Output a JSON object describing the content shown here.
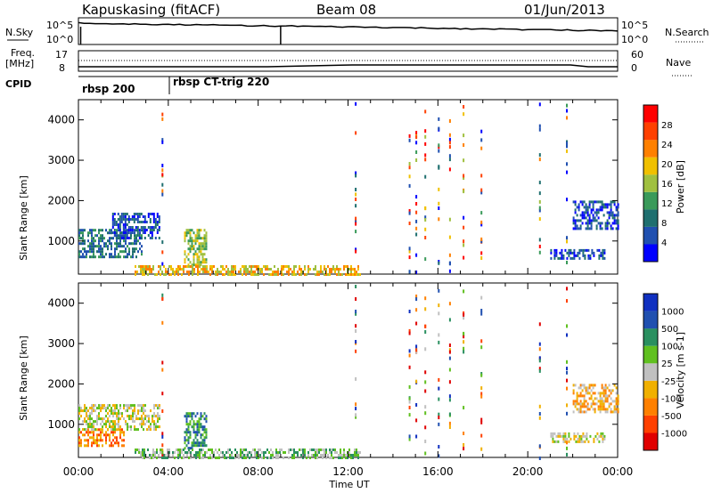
{
  "header": {
    "station": "Kapuskasing (fitACF)",
    "beam": "Beam 08",
    "date": "01/Jun/2013"
  },
  "panels_top": {
    "nsky_label": "N.Sky",
    "nsky_ticks": [
      "10^5",
      "10^0"
    ],
    "nsearch_ticks": [
      "10^5",
      "10^0"
    ],
    "nsearch_label": "N.Search",
    "freq_label_1": "Freq.",
    "freq_label_2": "[MHz]",
    "freq_ticks": [
      "17",
      "8"
    ],
    "nave_ticks": [
      "60",
      "0"
    ],
    "nave_label": "Nave",
    "cpid_label": "CPID",
    "cpid_1": "rbsp 200",
    "cpid_2": "rbsp CT-trig 220"
  },
  "colors": {
    "power": [
      "#0000ff",
      "#2050b0",
      "#1f6f6f",
      "#3a9a5a",
      "#a0c040",
      "#f0c000",
      "#ff8000",
      "#ff4000",
      "#ff0000"
    ],
    "velocity": [
      "#e00000",
      "#ff4000",
      "#ff8000",
      "#f0b000",
      "#c0c0c0",
      "#60c020",
      "#2a9060",
      "#2050b0",
      "#1030c0"
    ]
  },
  "chart_data": [
    {
      "type": "heatmap",
      "title": "Power [dB]",
      "ylabel": "Slant Range [km]",
      "xlabel": "",
      "x_ticks": [
        "00:00",
        "04:00",
        "08:00",
        "12:00",
        "16:00",
        "20:00",
        "00:00"
      ],
      "y_ticks": [
        1000,
        2000,
        3000,
        4000
      ],
      "ylim": [
        180,
        4500
      ],
      "xlim_hours": [
        0,
        24
      ],
      "colorbar": {
        "label": "Power [dB]",
        "ticks": [
          4,
          8,
          12,
          16,
          20,
          24,
          28
        ]
      },
      "regions": [
        {
          "t0": 0.0,
          "t1": 2.8,
          "r0": 600,
          "r1": 1300,
          "level": 2
        },
        {
          "t0": 1.5,
          "t1": 3.6,
          "r0": 1100,
          "r1": 1700,
          "level": 1
        },
        {
          "t0": 4.7,
          "t1": 5.7,
          "r0": 400,
          "r1": 1300,
          "level": 4
        },
        {
          "t0": 2.5,
          "t1": 12.5,
          "r0": 200,
          "r1": 400,
          "level": 5
        },
        {
          "t0": 21.0,
          "t1": 23.4,
          "r0": 600,
          "r1": 800,
          "level": 1
        },
        {
          "t0": 22.0,
          "t1": 24.0,
          "r0": 1300,
          "r1": 2000,
          "level": 1
        }
      ]
    },
    {
      "type": "heatmap",
      "title": "Velocity [m s-1]",
      "ylabel": "Slant Range [km]",
      "xlabel": "Time UT",
      "x_ticks": [
        "00:00",
        "04:00",
        "08:00",
        "12:00",
        "16:00",
        "20:00",
        "00:00"
      ],
      "y_ticks": [
        1000,
        2000,
        3000,
        4000
      ],
      "ylim": [
        180,
        4500
      ],
      "xlim_hours": [
        0,
        24
      ],
      "colorbar": {
        "label": "Velocity [m s-1]",
        "ticks": [
          1000,
          500,
          100,
          25,
          -25,
          -100,
          -500,
          -1000
        ]
      },
      "regions": [
        {
          "t0": 0.0,
          "t1": 2.0,
          "r0": 500,
          "r1": 900,
          "level": 2
        },
        {
          "t0": 0.0,
          "t1": 3.6,
          "r0": 900,
          "r1": 1500,
          "level": 4
        },
        {
          "t0": 4.7,
          "t1": 5.7,
          "r0": 400,
          "r1": 1300,
          "level": 6
        },
        {
          "t0": 2.5,
          "t1": 12.5,
          "r0": 200,
          "r1": 400,
          "level": 5
        },
        {
          "t0": 21.0,
          "t1": 23.4,
          "r0": 600,
          "r1": 800,
          "level": 4
        },
        {
          "t0": 22.0,
          "t1": 24.0,
          "r0": 1300,
          "r1": 2000,
          "level": 3
        }
      ]
    }
  ]
}
